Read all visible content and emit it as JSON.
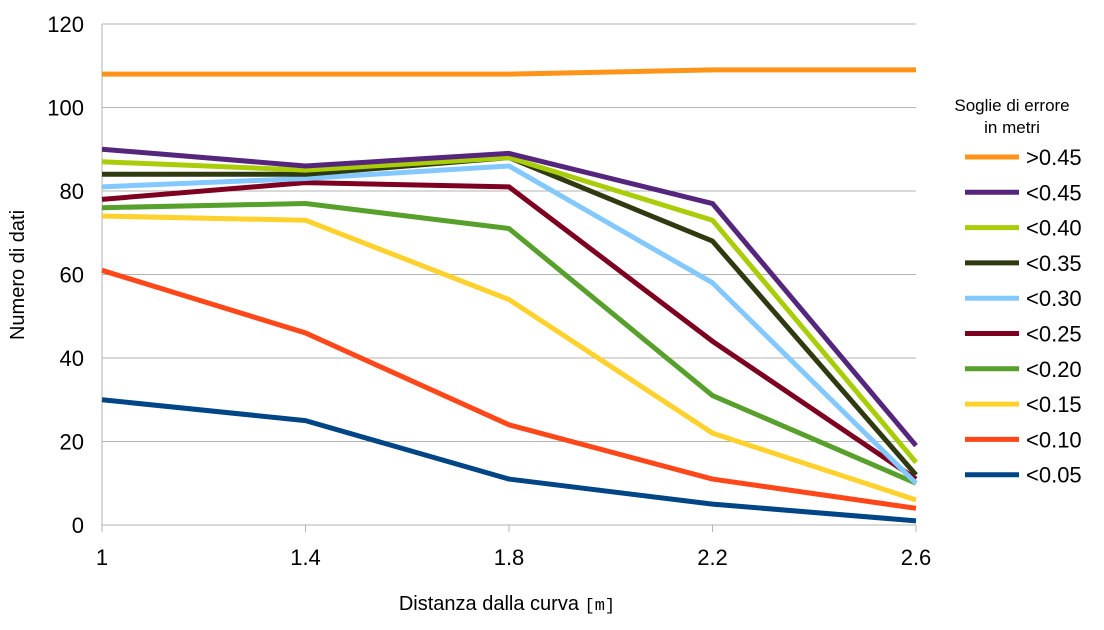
{
  "chart_data": {
    "type": "line",
    "title": "",
    "xlabel": "Distanza dalla curva",
    "xlabel_unit": "[m]",
    "ylabel": "Numero di dati",
    "x": [
      "1",
      "1.4",
      "1.8",
      "2.2",
      "2.6"
    ],
    "ylim": [
      0,
      120
    ],
    "yticks": [
      "0",
      "20",
      "40",
      "60",
      "80",
      "100",
      "120"
    ],
    "grid": "horizontal",
    "legend": {
      "placement": "right",
      "title_line1": "Soglie di errore",
      "title_line2": "in metri"
    },
    "series": [
      {
        "name": ">0.45",
        "color": "#ff9419",
        "values": [
          108,
          108,
          108,
          109,
          109
        ]
      },
      {
        "name": "<0.45",
        "color": "#55267c",
        "values": [
          90,
          86,
          89,
          77,
          19
        ]
      },
      {
        "name": "<0.40",
        "color": "#aacd0a",
        "values": [
          87,
          85,
          88,
          73,
          15
        ]
      },
      {
        "name": "<0.35",
        "color": "#2f3a10",
        "values": [
          84,
          84,
          88,
          68,
          12
        ]
      },
      {
        "name": "<0.30",
        "color": "#83c9ff",
        "values": [
          81,
          83,
          86,
          58,
          10
        ]
      },
      {
        "name": "<0.25",
        "color": "#7e0021",
        "values": [
          78,
          82,
          81,
          44,
          11
        ]
      },
      {
        "name": "<0.20",
        "color": "#57a02c",
        "values": [
          76,
          77,
          71,
          31,
          10
        ]
      },
      {
        "name": "<0.15",
        "color": "#ffd12c",
        "values": [
          74,
          73,
          54,
          22,
          6
        ]
      },
      {
        "name": "<0.10",
        "color": "#ff4719",
        "values": [
          61,
          46,
          24,
          11,
          4
        ]
      },
      {
        "name": "<0.05",
        "color": "#004586",
        "values": [
          30,
          25,
          11,
          5,
          1
        ]
      }
    ]
  }
}
